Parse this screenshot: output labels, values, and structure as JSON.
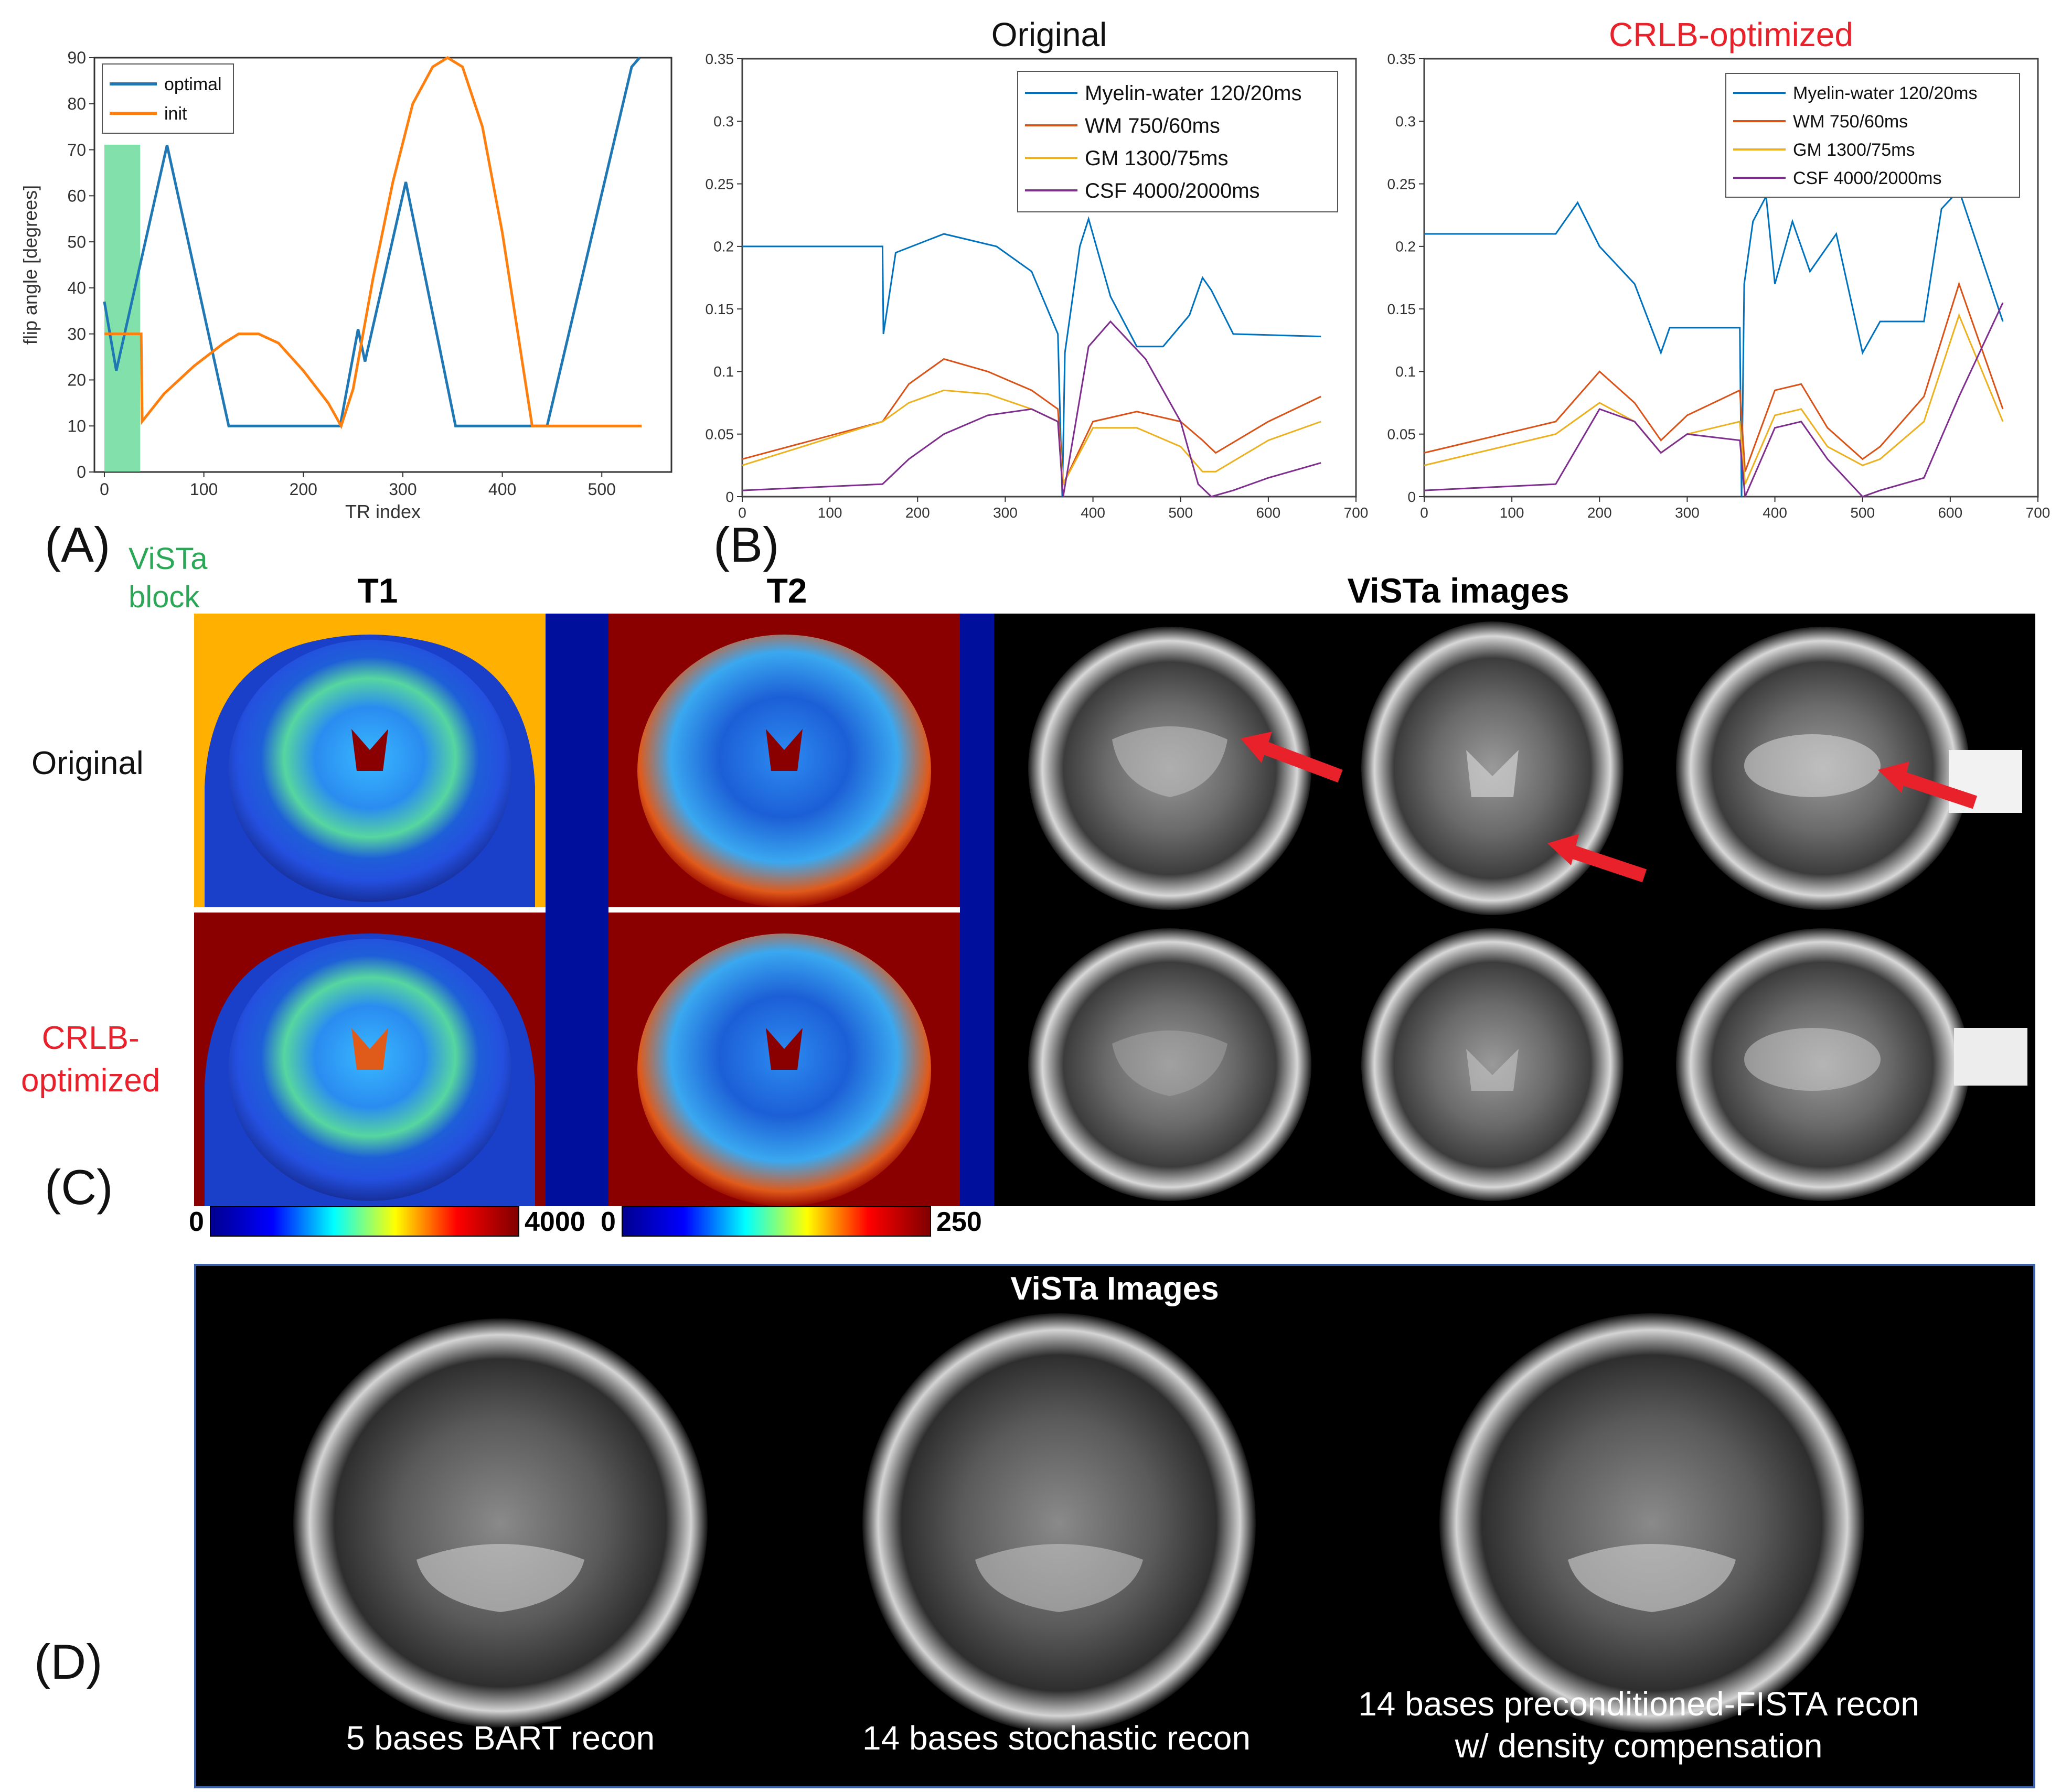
{
  "panel_labels": {
    "a": "(A)",
    "b": "(B)",
    "c": "(C)",
    "d": "(D)"
  },
  "vista_block_label": [
    "ViSTa",
    "block"
  ],
  "colors": {
    "optimal": "#1f77b4",
    "init": "#ff7f0e",
    "vista_block": "#2ecc71",
    "myelin": "#0072bd",
    "wm": "#d95319",
    "gm": "#edb120",
    "csf": "#7e2f8e",
    "red": "#e8212b"
  },
  "chart_data": [
    {
      "type": "line",
      "xlabel": "TR index",
      "ylabel": "flip angle [degrees]",
      "xlim": [
        -10,
        570
      ],
      "ylim": [
        0,
        90
      ],
      "xticks": [
        0,
        100,
        200,
        300,
        400,
        500
      ],
      "yticks": [
        0,
        10,
        20,
        30,
        40,
        50,
        60,
        70,
        80,
        90
      ],
      "legend": "top-left",
      "shaded_span": [
        0,
        36
      ],
      "series": [
        {
          "name": "optimal",
          "x": [
            0,
            12,
            63,
            125,
            237,
            255,
            262,
            303,
            353,
            445,
            530,
            538
          ],
          "y": [
            37,
            22,
            71,
            10,
            10,
            31,
            24,
            63,
            10,
            10,
            88,
            90
          ]
        },
        {
          "name": "init",
          "x": [
            0,
            37,
            38,
            60,
            90,
            120,
            135,
            155,
            175,
            200,
            225,
            238,
            250,
            270,
            290,
            310,
            330,
            345,
            360,
            380,
            400,
            420,
            430,
            540
          ],
          "y": [
            30,
            30,
            11,
            17,
            23,
            28,
            30,
            30,
            28,
            22,
            15,
            10,
            18,
            42,
            63,
            80,
            88,
            90,
            88,
            75,
            52,
            24,
            10,
            10
          ]
        }
      ]
    },
    {
      "type": "line",
      "title": "Original",
      "xlim": [
        0,
        700
      ],
      "ylim": [
        0,
        0.35
      ],
      "xticks": [
        0,
        100,
        200,
        300,
        400,
        500,
        600,
        700
      ],
      "yticks": [
        "0",
        "0.05",
        "0.1",
        "0.15",
        "0.2",
        "0.25",
        "0.3",
        "0.35"
      ],
      "legend": "top-right",
      "series": [
        {
          "name": "Myelin-water 120/20ms",
          "x": [
            0,
            160,
            161,
            175,
            230,
            290,
            330,
            360,
            365,
            368,
            385,
            395,
            420,
            450,
            480,
            510,
            525,
            535,
            560,
            660
          ],
          "y": [
            0.2,
            0.2,
            0.13,
            0.195,
            0.21,
            0.2,
            0.18,
            0.13,
            0.0,
            0.115,
            0.2,
            0.222,
            0.16,
            0.12,
            0.12,
            0.145,
            0.175,
            0.165,
            0.13,
            0.128
          ]
        },
        {
          "name": "WM 750/60ms",
          "x": [
            0,
            160,
            190,
            230,
            280,
            330,
            360,
            366,
            400,
            450,
            500,
            525,
            540,
            600,
            660
          ],
          "y": [
            0.03,
            0.06,
            0.09,
            0.11,
            0.1,
            0.085,
            0.07,
            0.01,
            0.06,
            0.068,
            0.06,
            0.045,
            0.035,
            0.06,
            0.08
          ]
        },
        {
          "name": "GM 1300/75ms",
          "x": [
            0,
            160,
            190,
            230,
            280,
            330,
            360,
            366,
            400,
            450,
            500,
            525,
            540,
            600,
            660
          ],
          "y": [
            0.025,
            0.06,
            0.075,
            0.085,
            0.082,
            0.07,
            0.06,
            0.01,
            0.055,
            0.055,
            0.04,
            0.02,
            0.02,
            0.045,
            0.06
          ]
        },
        {
          "name": "CSF 4000/2000ms",
          "x": [
            0,
            160,
            190,
            230,
            280,
            330,
            360,
            366,
            395,
            420,
            460,
            500,
            520,
            535,
            560,
            600,
            660
          ],
          "y": [
            0.005,
            0.01,
            0.03,
            0.05,
            0.065,
            0.07,
            0.06,
            0.0,
            0.12,
            0.14,
            0.11,
            0.06,
            0.01,
            0.0,
            0.005,
            0.015,
            0.027
          ]
        }
      ]
    },
    {
      "type": "line",
      "title": "CRLB-optimized",
      "xlim": [
        0,
        700
      ],
      "ylim": [
        0,
        0.35
      ],
      "xticks": [
        0,
        100,
        200,
        300,
        400,
        500,
        600,
        700
      ],
      "yticks": [
        "0",
        "0.05",
        "0.1",
        "0.15",
        "0.2",
        "0.25",
        "0.3",
        "0.35"
      ],
      "legend": "top-right",
      "series": [
        {
          "name": "Myelin-water 120/20ms",
          "x": [
            0,
            150,
            175,
            200,
            240,
            270,
            280,
            360,
            362,
            365,
            375,
            390,
            400,
            420,
            440,
            470,
            500,
            520,
            570,
            590,
            610,
            660
          ],
          "y": [
            0.21,
            0.21,
            0.235,
            0.2,
            0.17,
            0.115,
            0.135,
            0.135,
            0.0,
            0.17,
            0.22,
            0.24,
            0.17,
            0.22,
            0.18,
            0.21,
            0.115,
            0.14,
            0.14,
            0.23,
            0.245,
            0.14
          ]
        },
        {
          "name": "WM 750/60ms",
          "x": [
            0,
            150,
            200,
            240,
            270,
            300,
            360,
            366,
            400,
            430,
            460,
            500,
            520,
            570,
            610,
            660
          ],
          "y": [
            0.035,
            0.06,
            0.1,
            0.075,
            0.045,
            0.065,
            0.085,
            0.02,
            0.085,
            0.09,
            0.055,
            0.03,
            0.04,
            0.08,
            0.17,
            0.07
          ]
        },
        {
          "name": "GM 1300/75ms",
          "x": [
            0,
            150,
            200,
            240,
            270,
            300,
            360,
            366,
            400,
            430,
            460,
            500,
            520,
            570,
            610,
            660
          ],
          "y": [
            0.025,
            0.05,
            0.075,
            0.06,
            0.035,
            0.05,
            0.06,
            0.01,
            0.065,
            0.07,
            0.04,
            0.025,
            0.03,
            0.06,
            0.145,
            0.06
          ]
        },
        {
          "name": "CSF 4000/2000ms",
          "x": [
            0,
            150,
            200,
            240,
            270,
            300,
            360,
            366,
            400,
            430,
            460,
            500,
            520,
            570,
            610,
            660
          ],
          "y": [
            0.005,
            0.01,
            0.07,
            0.06,
            0.035,
            0.05,
            0.045,
            0.0,
            0.055,
            0.06,
            0.03,
            0.0,
            0.005,
            0.015,
            0.08,
            0.155
          ]
        }
      ]
    }
  ],
  "panel_c": {
    "t1_title": "T1",
    "t2_title": "T2",
    "vista_title": "ViSTa images",
    "row_original": "Original",
    "row_crlb": [
      "CRLB-",
      "optimized"
    ],
    "t1_colorbar": {
      "min": "0",
      "max": "4000"
    },
    "t2_colorbar": {
      "min": "0",
      "max": "250"
    }
  },
  "panel_d": {
    "title": "ViSTa Images",
    "captions": [
      {
        "line1": "5 bases BART recon",
        "line2": ""
      },
      {
        "line1": "14 bases stochastic recon",
        "line2": ""
      },
      {
        "line1": "14 bases preconditioned-FISTA recon",
        "line2": "w/ density compensation"
      }
    ]
  }
}
